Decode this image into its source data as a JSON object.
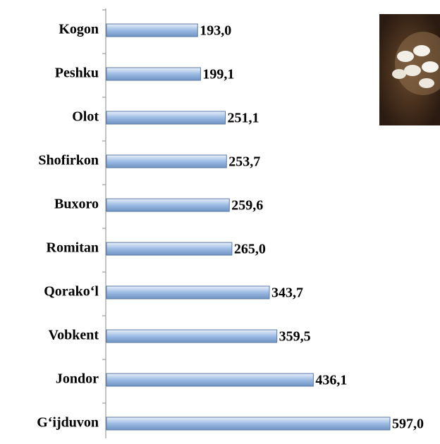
{
  "chart_data": {
    "type": "bar",
    "orientation": "horizontal",
    "categories": [
      "Kogon",
      "Peshku",
      "Olot",
      "Shofirkon",
      "Buxoro",
      "Romitan",
      "Qorako‘l",
      "Vobkent",
      "Jondor",
      "G‘ijduvon"
    ],
    "values": [
      193.0,
      199.1,
      251.1,
      253.7,
      259.6,
      265.0,
      343.7,
      359.5,
      436.1,
      597.0
    ],
    "value_labels": [
      "193,0",
      "199,1",
      "251,1",
      "253,7",
      "259,6",
      "265,0",
      "343,7",
      "359,5",
      "436,1",
      "597,0"
    ],
    "color": "#9dbbe3"
  }
}
